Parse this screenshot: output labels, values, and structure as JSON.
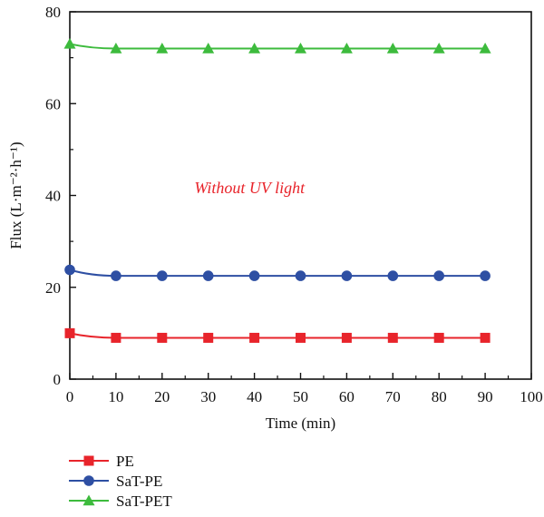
{
  "chart_data": {
    "type": "line",
    "title": "",
    "xlabel": "Time (min)",
    "ylabel": "Flux (L·m⁻²·h⁻¹)",
    "xlim": [
      0,
      100
    ],
    "ylim": [
      0,
      80
    ],
    "xticks": [
      0,
      10,
      20,
      30,
      40,
      50,
      60,
      70,
      80,
      90,
      100
    ],
    "yticks": [
      0,
      20,
      40,
      60,
      80
    ],
    "grid": false,
    "legend_position": "bottom-left, below plot",
    "annotation": {
      "text": "Without UV light",
      "color": "#e8242b",
      "x": 27,
      "y": 40.5
    },
    "series": [
      {
        "name": "PE",
        "color": "#e8242b",
        "marker": "square",
        "x": [
          0,
          10,
          20,
          30,
          40,
          50,
          60,
          70,
          80,
          90
        ],
        "y": [
          10,
          9,
          9,
          9,
          9,
          9,
          9,
          9,
          9,
          9
        ]
      },
      {
        "name": "SaT-PE",
        "color": "#2e4fa3",
        "marker": "circle",
        "x": [
          0,
          10,
          20,
          30,
          40,
          50,
          60,
          70,
          80,
          90
        ],
        "y": [
          23.8,
          22.5,
          22.5,
          22.5,
          22.5,
          22.5,
          22.5,
          22.5,
          22.5,
          22.5
        ]
      },
      {
        "name": "SaT-PET",
        "color": "#3dbb3d",
        "marker": "triangle",
        "x": [
          0,
          10,
          20,
          30,
          40,
          50,
          60,
          70,
          80,
          90
        ],
        "y": [
          73,
          72,
          72,
          72,
          72,
          72,
          72,
          72,
          72,
          72
        ]
      }
    ]
  }
}
